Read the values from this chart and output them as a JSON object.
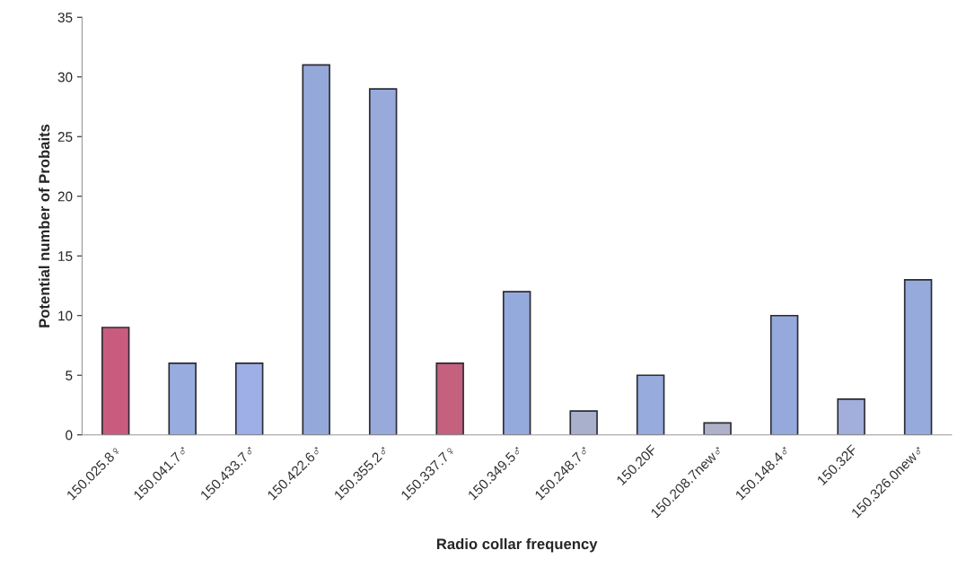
{
  "chart_data": {
    "type": "bar",
    "xlabel": "Radio collar frequency",
    "ylabel": "Potential number of Probaits",
    "categories": [
      "150.025.8♀",
      "150.041.7♂",
      "150.433.7♂",
      "150.422.6♂",
      "150.355.2♂",
      "150.337.7♀",
      "150.349.5♂",
      "150.248.7♂",
      "150.20F",
      "150.208.7new♂",
      "150.148.4♂",
      "150.32F",
      "150.326.0new♂"
    ],
    "values": [
      9,
      6,
      6,
      31,
      29,
      6,
      12,
      2,
      5,
      1,
      10,
      3,
      13
    ],
    "colors": [
      "#c95c7e",
      "#98acdf",
      "#9dafe6",
      "#94a9d9",
      "#97aadb",
      "#c5607f",
      "#95aadc",
      "#a9b0cc",
      "#97abdc",
      "#aeb1c8",
      "#95a9dc",
      "#a2afdc",
      "#96aadc"
    ],
    "ylim": [
      0,
      35
    ],
    "yticks": [
      0,
      5,
      10,
      15,
      20,
      25,
      30,
      35
    ],
    "grid": false
  }
}
